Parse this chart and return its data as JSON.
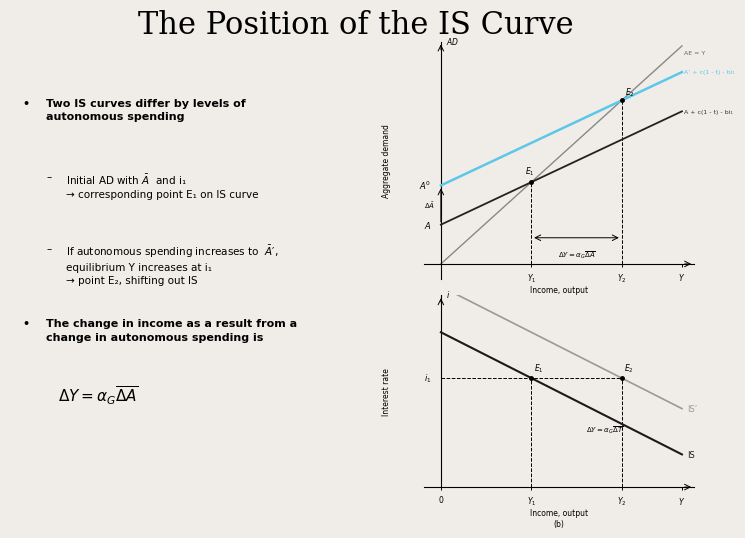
{
  "title": "The Position of the IS Curve",
  "bg": "#f0ede8",
  "white": "#ffffff",
  "title_fontsize": 22,
  "top_chart": {
    "line_45_color": "#888888",
    "line_ad1_color": "#222222",
    "line_ad2_color": "#5bc8e8",
    "label_45": "AE = Y",
    "label_ad1": "A + c(1 - t) - bi₁",
    "label_ad2": "A’ + c(1 - t) - bi₁",
    "xlabel": "Income, output\n(a)",
    "ylabel": "Aggregate demand"
  },
  "bottom_chart": {
    "line_is1_color": "#1a1a1a",
    "line_is2_color": "#999999",
    "label_is1": "IS",
    "label_is2": "IS’",
    "xlabel": "Income, output\n(b)",
    "ylabel": "Interest rate"
  }
}
